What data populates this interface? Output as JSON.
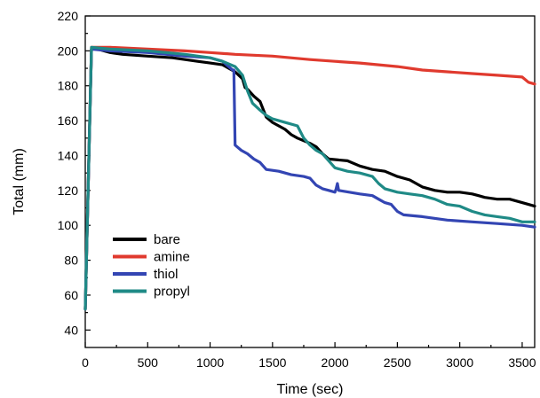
{
  "chart_data": {
    "type": "line",
    "title": "",
    "xlabel": "Time (sec)",
    "ylabel": "Total (mm)",
    "xlim": [
      0,
      3600
    ],
    "ylim": [
      30,
      220
    ],
    "x_ticks": [
      0,
      500,
      1000,
      1500,
      2000,
      2500,
      3000,
      3500
    ],
    "y_ticks": [
      40,
      60,
      80,
      100,
      120,
      140,
      160,
      180,
      200,
      220
    ],
    "legend_position": "lower-left",
    "series": [
      {
        "name": "bare",
        "color": "#000000",
        "points": [
          [
            0,
            52
          ],
          [
            50,
            201
          ],
          [
            100,
            201
          ],
          [
            200,
            199
          ],
          [
            300,
            198
          ],
          [
            500,
            197
          ],
          [
            700,
            196
          ],
          [
            900,
            194
          ],
          [
            1000,
            193
          ],
          [
            1100,
            192
          ],
          [
            1200,
            188
          ],
          [
            1260,
            184
          ],
          [
            1280,
            179
          ],
          [
            1300,
            178
          ],
          [
            1350,
            174
          ],
          [
            1400,
            171
          ],
          [
            1450,
            162
          ],
          [
            1500,
            159
          ],
          [
            1600,
            155
          ],
          [
            1650,
            152
          ],
          [
            1700,
            150
          ],
          [
            1800,
            147
          ],
          [
            1850,
            145
          ],
          [
            1900,
            141
          ],
          [
            1950,
            138
          ],
          [
            2100,
            137
          ],
          [
            2200,
            134
          ],
          [
            2300,
            132
          ],
          [
            2400,
            131
          ],
          [
            2500,
            128
          ],
          [
            2600,
            126
          ],
          [
            2700,
            122
          ],
          [
            2800,
            120
          ],
          [
            2900,
            119
          ],
          [
            3000,
            119
          ],
          [
            3100,
            118
          ],
          [
            3150,
            117
          ],
          [
            3200,
            116
          ],
          [
            3300,
            115
          ],
          [
            3400,
            115
          ],
          [
            3500,
            113
          ],
          [
            3550,
            112
          ],
          [
            3600,
            111
          ]
        ]
      },
      {
        "name": "amine",
        "color": "#e03a2e",
        "points": [
          [
            0,
            52
          ],
          [
            50,
            202
          ],
          [
            200,
            202
          ],
          [
            500,
            201
          ],
          [
            800,
            200
          ],
          [
            1000,
            199
          ],
          [
            1200,
            198
          ],
          [
            1500,
            197
          ],
          [
            1800,
            195
          ],
          [
            2000,
            194
          ],
          [
            2200,
            193
          ],
          [
            2500,
            191
          ],
          [
            2700,
            189
          ],
          [
            2900,
            188
          ],
          [
            3100,
            187
          ],
          [
            3300,
            186
          ],
          [
            3500,
            185
          ],
          [
            3550,
            182
          ],
          [
            3600,
            181
          ]
        ]
      },
      {
        "name": "thiol",
        "color": "#3345b3",
        "points": [
          [
            0,
            52
          ],
          [
            50,
            201
          ],
          [
            200,
            200
          ],
          [
            500,
            199
          ],
          [
            800,
            197
          ],
          [
            1000,
            196
          ],
          [
            1100,
            194
          ],
          [
            1180,
            189
          ],
          [
            1190,
            189
          ],
          [
            1200,
            146
          ],
          [
            1250,
            143
          ],
          [
            1300,
            141
          ],
          [
            1350,
            138
          ],
          [
            1400,
            136
          ],
          [
            1450,
            132
          ],
          [
            1550,
            131
          ],
          [
            1650,
            129
          ],
          [
            1750,
            128
          ],
          [
            1800,
            127
          ],
          [
            1850,
            123
          ],
          [
            1900,
            121
          ],
          [
            1950,
            120
          ],
          [
            2000,
            119
          ],
          [
            2010,
            121
          ],
          [
            2020,
            124
          ],
          [
            2030,
            120
          ],
          [
            2200,
            118
          ],
          [
            2300,
            117
          ],
          [
            2350,
            115
          ],
          [
            2400,
            113
          ],
          [
            2450,
            112
          ],
          [
            2500,
            108
          ],
          [
            2550,
            106
          ],
          [
            2700,
            105
          ],
          [
            2900,
            103
          ],
          [
            3100,
            102
          ],
          [
            3300,
            101
          ],
          [
            3500,
            100
          ],
          [
            3600,
            99
          ]
        ]
      },
      {
        "name": "propyl",
        "color": "#1f8a86",
        "points": [
          [
            0,
            52
          ],
          [
            50,
            202
          ],
          [
            200,
            201
          ],
          [
            500,
            200
          ],
          [
            800,
            198
          ],
          [
            1000,
            196
          ],
          [
            1100,
            194
          ],
          [
            1200,
            191
          ],
          [
            1260,
            186
          ],
          [
            1300,
            177
          ],
          [
            1340,
            170
          ],
          [
            1400,
            166
          ],
          [
            1450,
            163
          ],
          [
            1500,
            161
          ],
          [
            1600,
            159
          ],
          [
            1700,
            157
          ],
          [
            1750,
            150
          ],
          [
            1800,
            146
          ],
          [
            1850,
            143
          ],
          [
            1900,
            141
          ],
          [
            2000,
            133
          ],
          [
            2100,
            131
          ],
          [
            2200,
            130
          ],
          [
            2300,
            128
          ],
          [
            2350,
            124
          ],
          [
            2400,
            121
          ],
          [
            2500,
            119
          ],
          [
            2600,
            118
          ],
          [
            2700,
            117
          ],
          [
            2800,
            115
          ],
          [
            2900,
            112
          ],
          [
            3000,
            111
          ],
          [
            3100,
            108
          ],
          [
            3200,
            106
          ],
          [
            3300,
            105
          ],
          [
            3400,
            104
          ],
          [
            3500,
            102
          ],
          [
            3600,
            102
          ]
        ]
      }
    ]
  }
}
